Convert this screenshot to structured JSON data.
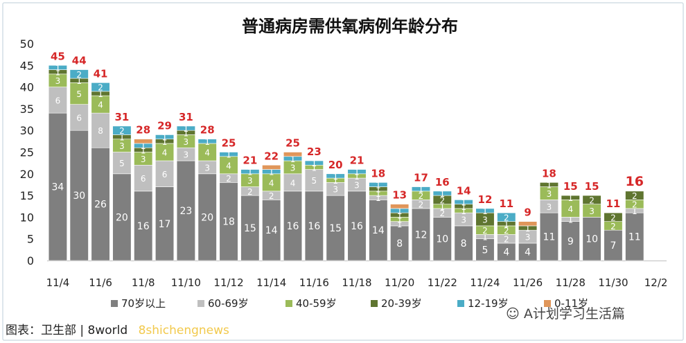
{
  "chart_data": {
    "type": "bar",
    "stacked": true,
    "title": "普通病房需供氧病例年龄分布",
    "xlabel": "",
    "ylabel": "",
    "ylim": [
      0,
      50
    ],
    "yticks": [
      0,
      5,
      10,
      15,
      20,
      25,
      30,
      35,
      40,
      45,
      50
    ],
    "grid": false,
    "legend_position": "bottom",
    "x_tick_labels": [
      "11/4",
      "11/6",
      "11/8",
      "11/10",
      "11/12",
      "11/14",
      "11/16",
      "11/18",
      "11/20",
      "11/22",
      "11/24",
      "11/26",
      "11/28",
      "11/30",
      "12/2"
    ],
    "categories": [
      "11/4",
      "11/5",
      "11/6",
      "11/7",
      "11/8",
      "11/9",
      "11/10",
      "11/11",
      "11/12",
      "11/13",
      "11/14",
      "11/15",
      "11/16",
      "11/17",
      "11/18",
      "11/19",
      "11/20",
      "11/21",
      "11/22",
      "11/23",
      "11/24",
      "11/25",
      "11/26",
      "11/27",
      "11/28",
      "11/29",
      "11/30",
      "12/1"
    ],
    "totals": [
      45,
      44,
      41,
      31,
      28,
      29,
      31,
      28,
      25,
      21,
      22,
      25,
      23,
      20,
      21,
      18,
      13,
      17,
      16,
      14,
      12,
      11,
      9,
      18,
      15,
      15,
      11,
      16
    ],
    "series": [
      {
        "name": "70岁以上",
        "color": "#7f7f7f",
        "values": [
          34,
          30,
          26,
          20,
          16,
          17,
          23,
          20,
          18,
          15,
          14,
          16,
          16,
          15,
          16,
          14,
          8,
          12,
          10,
          8,
          5,
          4,
          4,
          11,
          9,
          10,
          7,
          11
        ]
      },
      {
        "name": "60-69岁",
        "color": "#bfbfbf",
        "values": [
          6,
          6,
          8,
          5,
          6,
          6,
          3,
          3,
          2,
          2,
          2,
          4,
          5,
          3,
          3,
          1,
          1,
          2,
          2,
          3,
          1,
          2,
          3,
          3,
          1,
          0,
          0,
          1
        ]
      },
      {
        "name": "40-59岁",
        "color": "#9bbb59",
        "values": [
          3,
          5,
          4,
          3,
          3,
          4,
          3,
          4,
          4,
          3,
          4,
          3,
          1,
          1,
          1,
          1,
          1,
          2,
          1,
          1,
          2,
          2,
          0,
          3,
          4,
          3,
          2,
          2
        ]
      },
      {
        "name": "20-39岁",
        "color": "#5f7530",
        "values": [
          1,
          1,
          1,
          1,
          1,
          1,
          1,
          0,
          0,
          0,
          0,
          0,
          0,
          0,
          0,
          1,
          1,
          0,
          2,
          1,
          3,
          1,
          1,
          1,
          1,
          2,
          2,
          2
        ]
      },
      {
        "name": "12-19岁",
        "color": "#4bacc6",
        "values": [
          1,
          2,
          2,
          2,
          1,
          1,
          1,
          1,
          1,
          1,
          1,
          1,
          1,
          1,
          1,
          1,
          1,
          1,
          1,
          1,
          1,
          2,
          0,
          0,
          0,
          0,
          0,
          0
        ]
      },
      {
        "name": "0-11岁",
        "color": "#e0965a",
        "values": [
          0,
          0,
          0,
          0,
          1,
          0,
          0,
          0,
          0,
          0,
          1,
          1,
          0,
          0,
          0,
          0,
          1,
          0,
          0,
          0,
          0,
          0,
          1,
          0,
          0,
          0,
          0,
          0
        ]
      }
    ]
  },
  "footer": {
    "caption": "图表：卫生部 | 8world",
    "watermark": "8shichengnews",
    "wechat": "A计划学习生活篇"
  }
}
